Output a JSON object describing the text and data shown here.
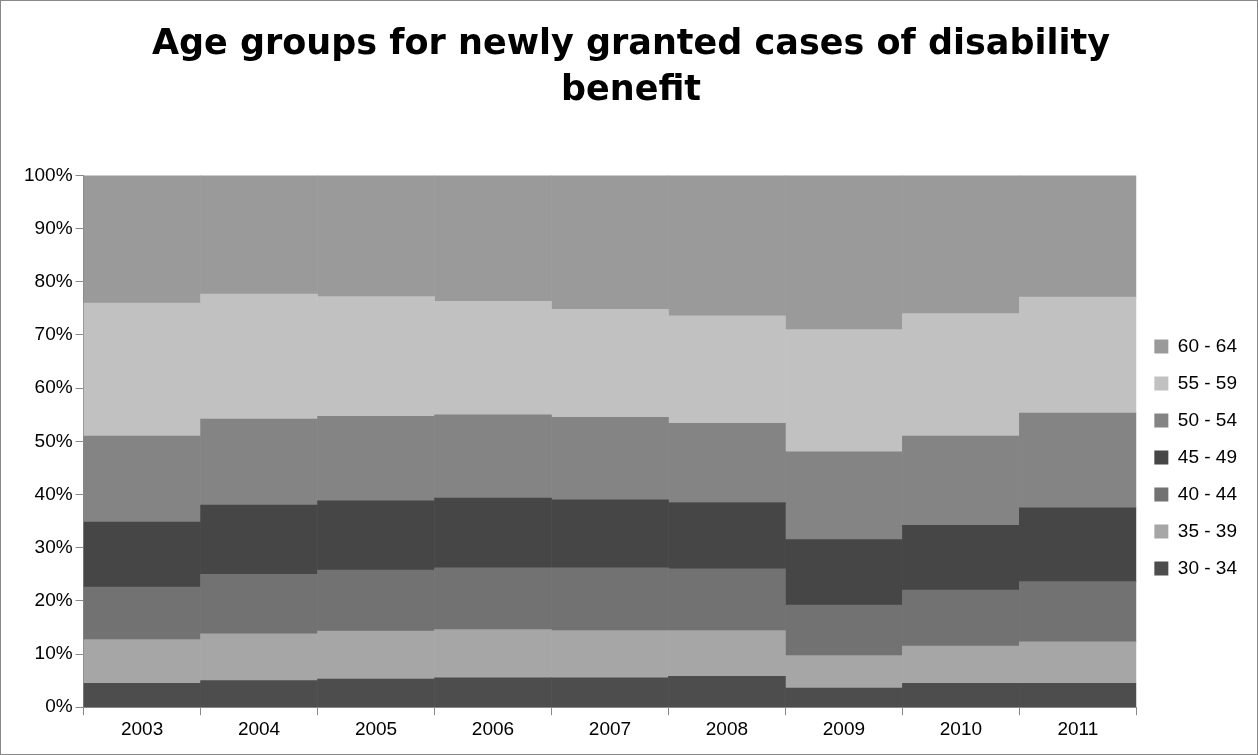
{
  "chart_data": {
    "type": "bar",
    "title": "Age groups for newly granted cases of disability benefit",
    "stacked": true,
    "categories": [
      "2003",
      "2004",
      "2005",
      "2006",
      "2007",
      "2008",
      "2009",
      "2010",
      "2011"
    ],
    "series": [
      {
        "name": "30 - 34",
        "color": "#4d4d4d",
        "values": [
          4.5,
          5,
          5.3,
          5.5,
          5.5,
          5.8,
          3.6,
          4.5,
          4.5
        ]
      },
      {
        "name": "35 - 39",
        "color": "#a6a6a6",
        "values": [
          8.2,
          8.8,
          9,
          9.1,
          8.9,
          8.6,
          6.1,
          7,
          7.8
        ]
      },
      {
        "name": "40 - 44",
        "color": "#727272",
        "values": [
          9.9,
          11.2,
          11.5,
          11.6,
          11.8,
          11.6,
          9.5,
          10.5,
          11.3
        ]
      },
      {
        "name": "45 - 49",
        "color": "#464646",
        "values": [
          12.2,
          13,
          13,
          13.1,
          12.8,
          12.5,
          12.3,
          12.2,
          13.9
        ]
      },
      {
        "name": "50 - 54",
        "color": "#848484",
        "values": [
          16.2,
          16.2,
          15.9,
          15.7,
          15.5,
          14.9,
          16.5,
          16.8,
          17.8
        ]
      },
      {
        "name": "55 - 59",
        "color": "#c1c1c1",
        "values": [
          25,
          23.5,
          22.5,
          21.3,
          20.3,
          20.2,
          23,
          23,
          21.8
        ]
      },
      {
        "name": "60 - 64",
        "color": "#9a9a9a",
        "values": [
          24,
          22.3,
          22.8,
          23.7,
          25.2,
          26.4,
          29,
          26,
          22.9
        ]
      }
    ],
    "ylim": [
      0,
      100
    ],
    "yticks": [
      {
        "value": 0,
        "label": "0%"
      },
      {
        "value": 10,
        "label": "10%"
      },
      {
        "value": 20,
        "label": "20%"
      },
      {
        "value": 30,
        "label": "30%"
      },
      {
        "value": 40,
        "label": "40%"
      },
      {
        "value": 50,
        "label": "50%"
      },
      {
        "value": 60,
        "label": "60%"
      },
      {
        "value": 70,
        "label": "70%"
      },
      {
        "value": 80,
        "label": "80%"
      },
      {
        "value": 90,
        "label": "90%"
      },
      {
        "value": 100,
        "label": "100%"
      }
    ],
    "grid": false,
    "legend": "right"
  }
}
